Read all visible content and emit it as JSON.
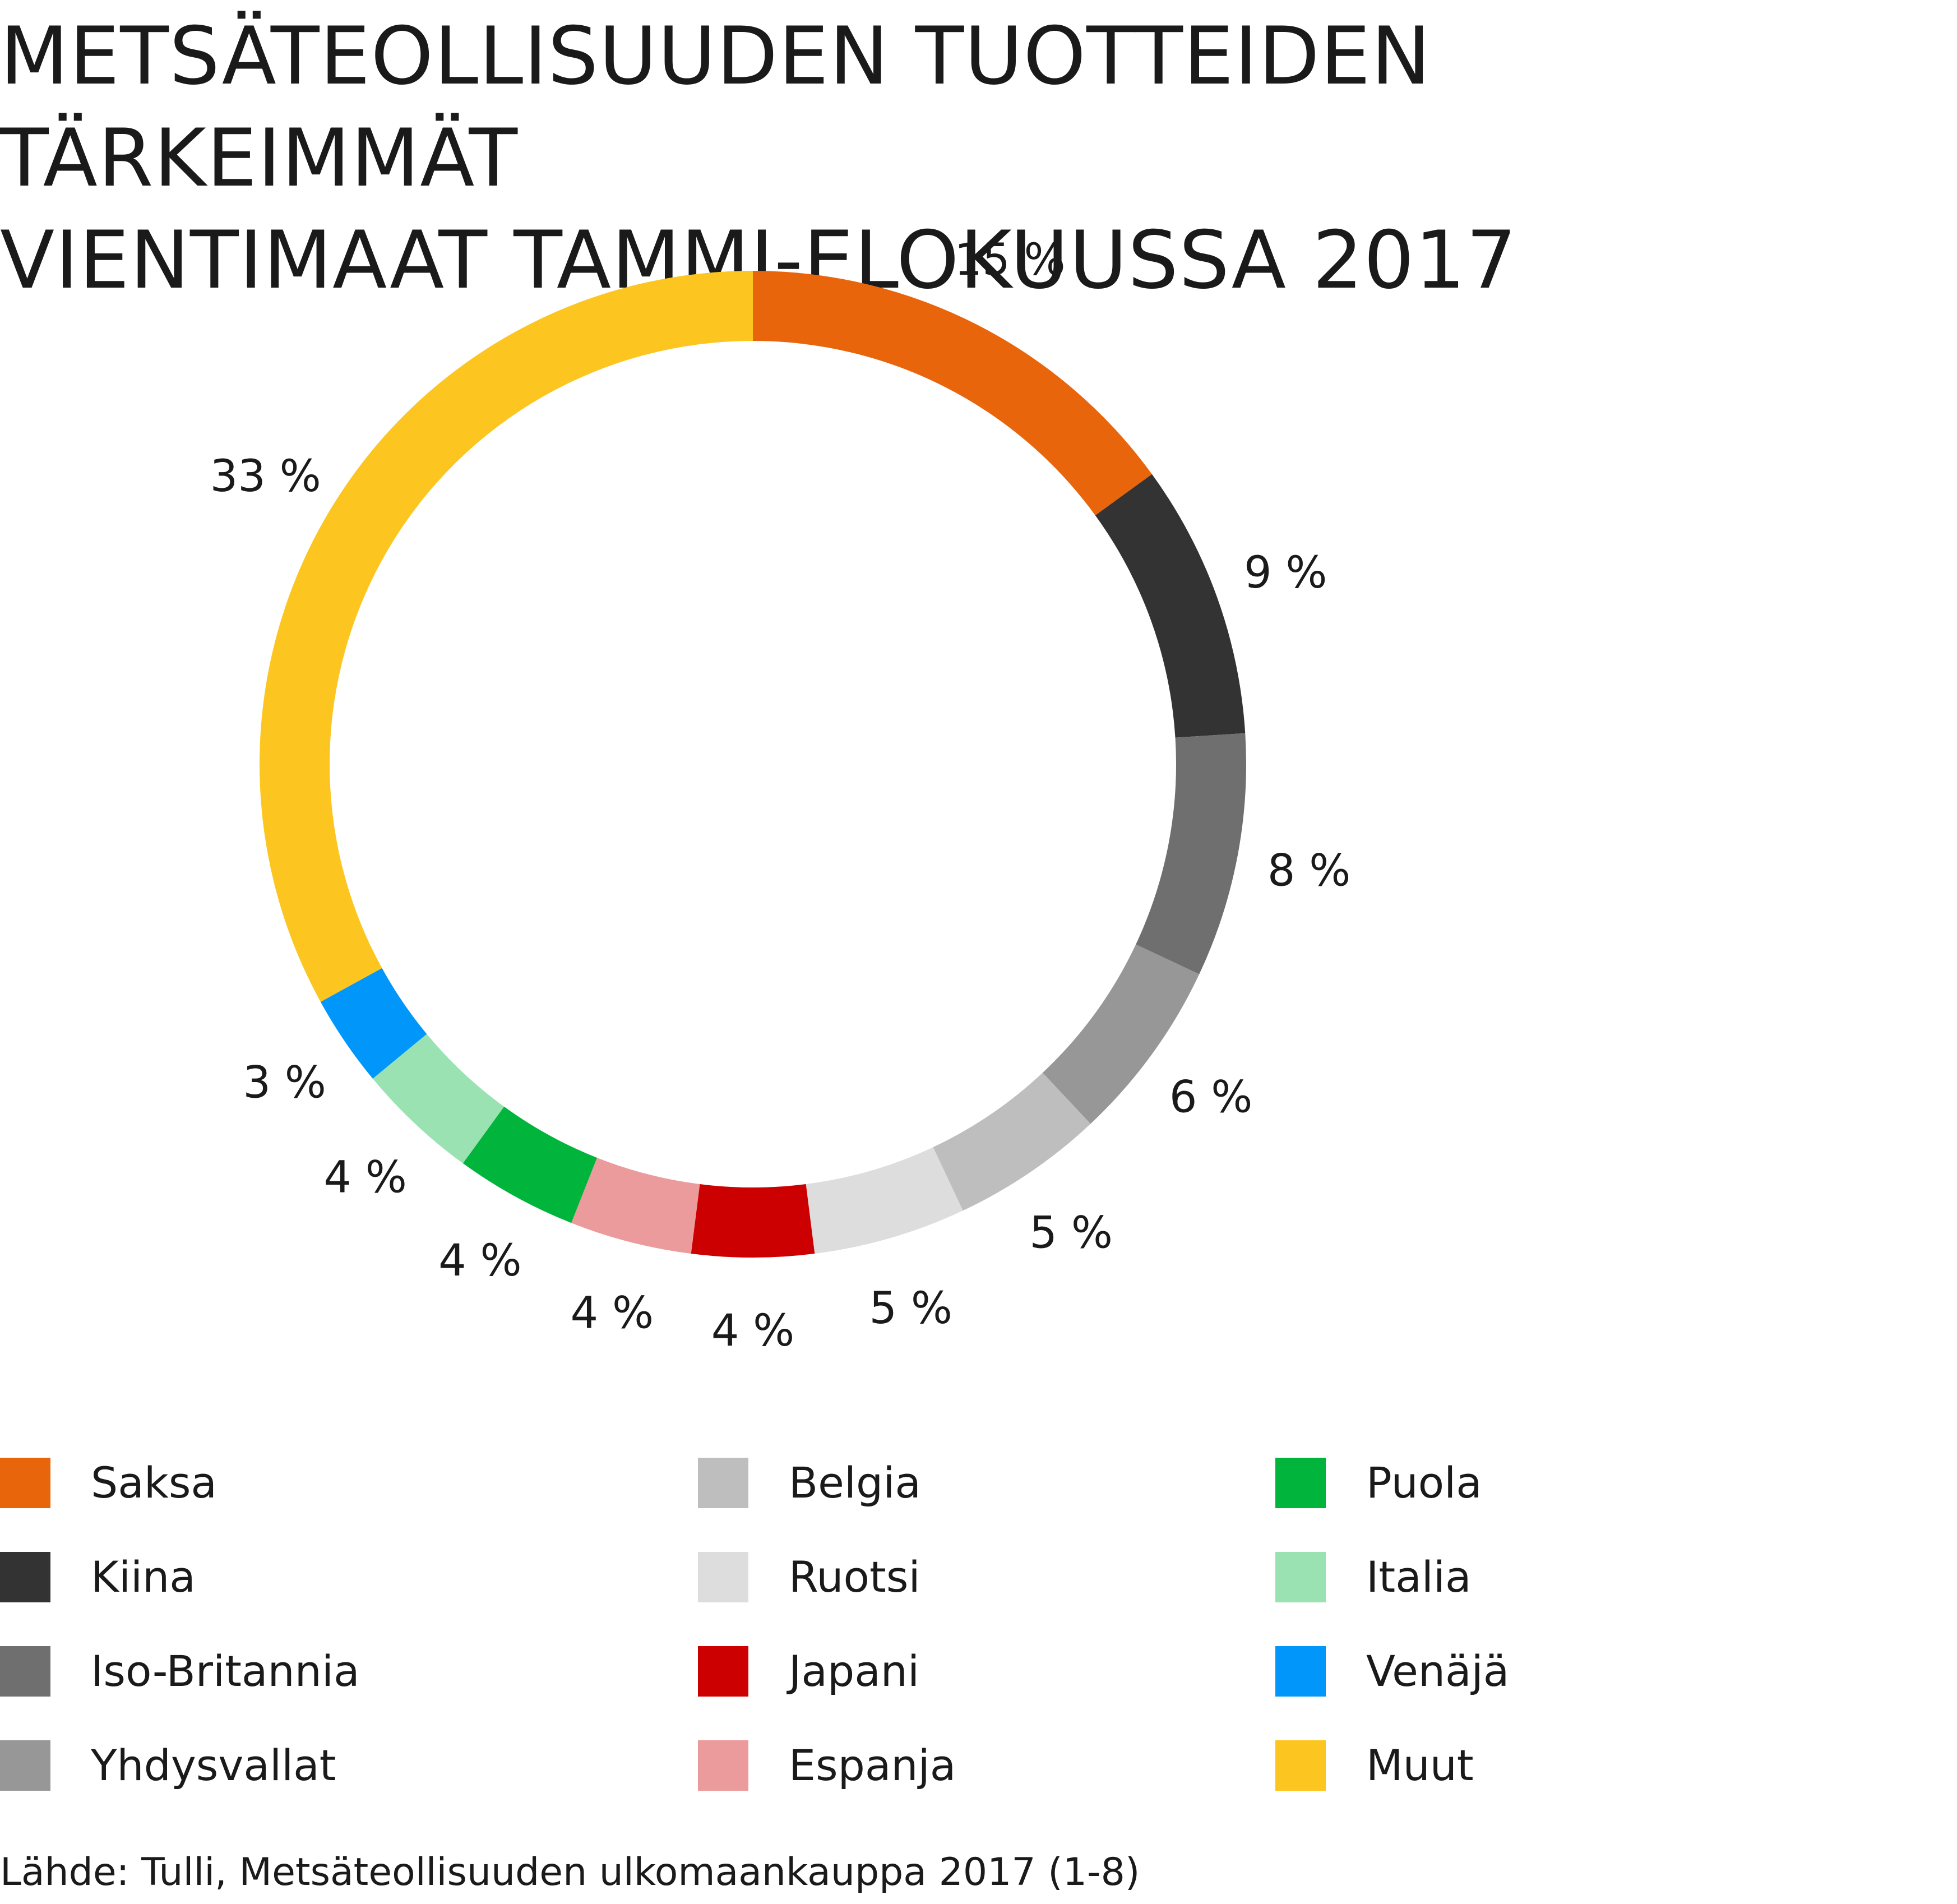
{
  "title_lines": [
    "METSÄTEOLLISUUDEN TUOTTEIDEN TÄRKEIMMÄT",
    "VIENTIMAAT TAMMI-ELOKUUSSA 2017"
  ],
  "source": "Lähde: Tulli, Metsäteollisuuden ulkomaankauppa 2017 (1-8)",
  "chart_data": {
    "type": "pie",
    "variant": "donut",
    "title": "METSÄTEOLLISUUDEN TUOTTEIDEN TÄRKEIMMÄT VIENTIMAAT TAMMI-ELOKUUSSA 2017",
    "unit": "%",
    "start": "top, clockwise",
    "legend_placement": "bottom",
    "slices": [
      {
        "name": "Saksa",
        "value": 15,
        "label": "15 %",
        "color": "#E8650C"
      },
      {
        "name": "Kiina",
        "value": 9,
        "label": "9 %",
        "color": "#333333"
      },
      {
        "name": "Iso-Britannia",
        "value": 8,
        "label": "8 %",
        "color": "#6F6F6F"
      },
      {
        "name": "Yhdysvallat",
        "value": 6,
        "label": "6 %",
        "color": "#979797"
      },
      {
        "name": "Belgia",
        "value": 5,
        "label": "5 %",
        "color": "#BEBEBE"
      },
      {
        "name": "Ruotsi",
        "value": 5,
        "label": "5 %",
        "color": "#DDDDDD"
      },
      {
        "name": "Japani",
        "value": 4,
        "label": "4 %",
        "color": "#CC0000"
      },
      {
        "name": "Espanja",
        "value": 4,
        "label": "4 %",
        "color": "#EB9B9B"
      },
      {
        "name": "Puola",
        "value": 4,
        "label": "4 %",
        "color": "#00B43C"
      },
      {
        "name": "Italia",
        "value": 4,
        "label": "4 %",
        "color": "#9AE2B2"
      },
      {
        "name": "Venäjä",
        "value": 3,
        "label": "3 %",
        "color": "#0096FA"
      },
      {
        "name": "Muut",
        "value": 33,
        "label": "33 %",
        "color": "#FCC51F"
      }
    ]
  },
  "legend_columns": [
    [
      "Saksa",
      "Kiina",
      "Iso-Britannia",
      "Yhdysvallat"
    ],
    [
      "Belgia",
      "Ruotsi",
      "Japani",
      "Espanja"
    ],
    [
      "Puola",
      "Italia",
      "Venäjä",
      "Muut"
    ]
  ]
}
